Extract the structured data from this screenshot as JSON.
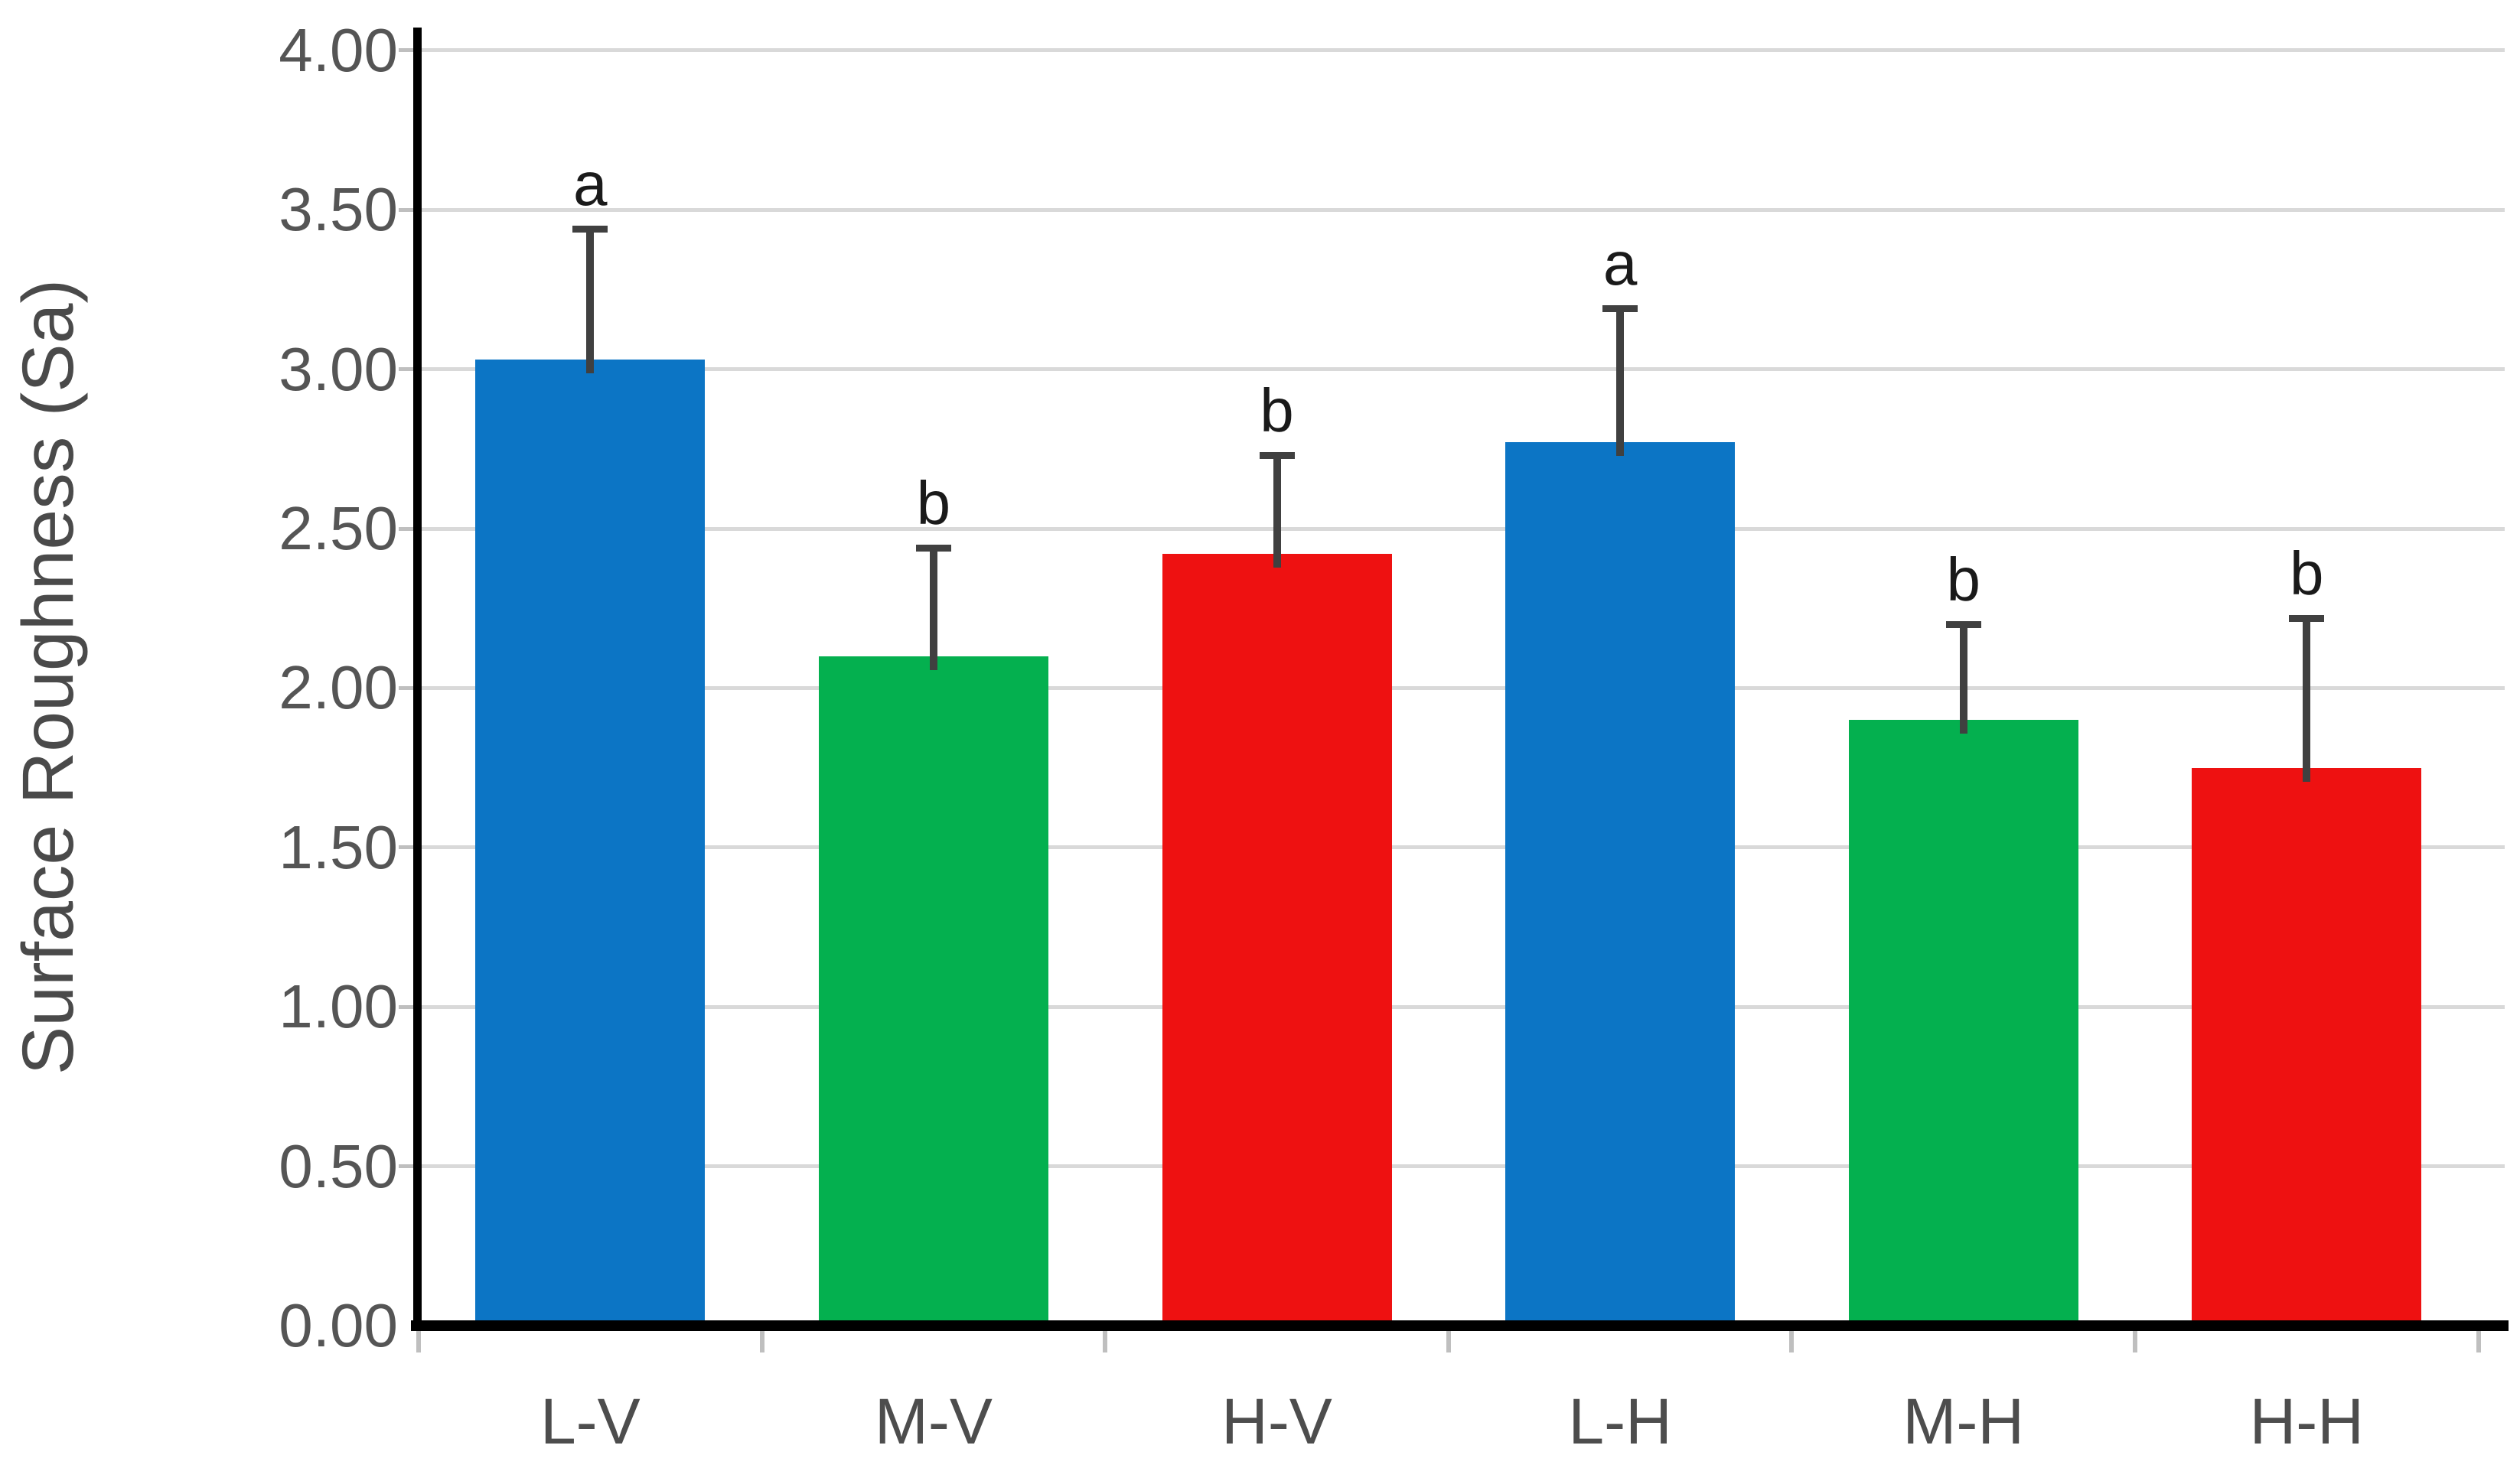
{
  "figure": {
    "background": "#FFFFFF"
  },
  "chart_data": {
    "type": "bar",
    "ylabel": "Surface Roughness (Sa)",
    "xlabel": "",
    "categories": [
      "L-V",
      "M-V",
      "H-V",
      "L-H",
      "M-H",
      "H-H"
    ],
    "values": [
      3.03,
      2.1,
      2.42,
      2.77,
      1.9,
      1.75
    ],
    "error_plus": [
      0.41,
      0.34,
      0.31,
      0.42,
      0.3,
      0.47
    ],
    "sig_letters": [
      "a",
      "b",
      "b",
      "a",
      "b",
      "b"
    ],
    "bar_colors": [
      "#0C75C5",
      "#04B04F",
      "#EE1111",
      "#0C75C5",
      "#04B04F",
      "#EE1111"
    ],
    "ylim": [
      0,
      4
    ],
    "ytick_step": 0.5,
    "ytick_labels": [
      "0.00",
      "0.50",
      "1.00",
      "1.50",
      "2.00",
      "2.50",
      "3.00",
      "3.50",
      "4.00"
    ],
    "grid": true,
    "legend": false,
    "colors": {
      "gridline": "#D9D9D9",
      "axis": "#000000",
      "error_bar": "#404040",
      "tick_label": "#555555",
      "category_label": "#4D4D4D",
      "axis_title": "#4A4A4A",
      "sig_letter": "#1A1A1A"
    }
  }
}
